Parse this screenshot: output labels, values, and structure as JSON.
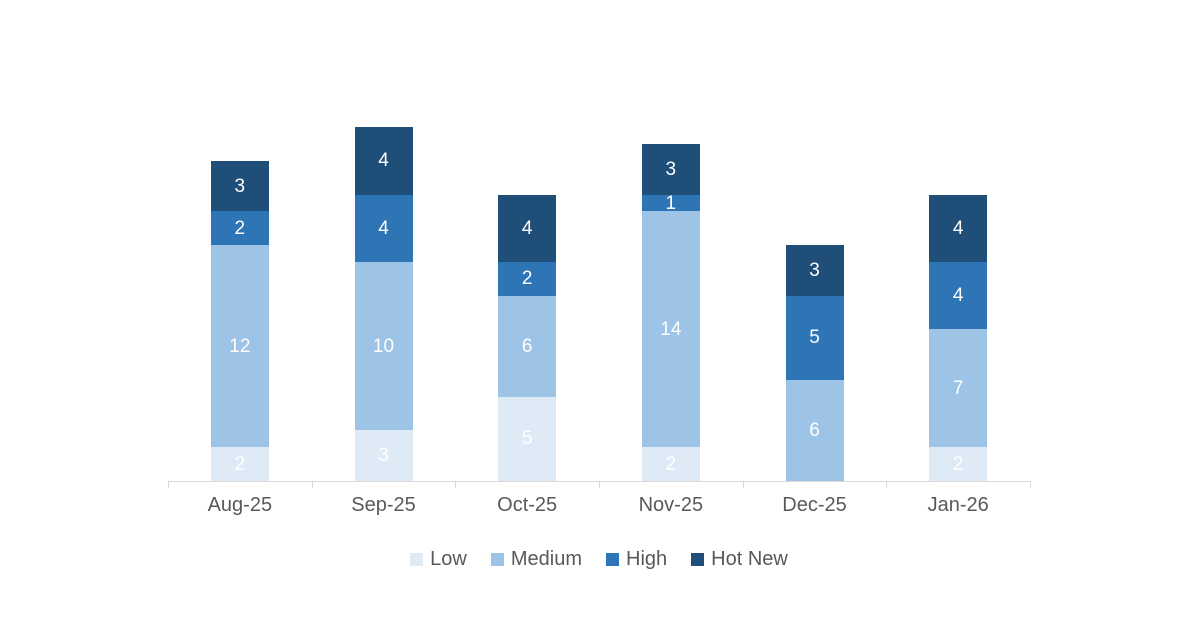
{
  "chart_data": {
    "type": "bar",
    "stacked": true,
    "title": "",
    "categories": [
      "Aug-25",
      "Sep-25",
      "Oct-25",
      "Nov-25",
      "Dec-25",
      "Jan-26"
    ],
    "series": [
      {
        "name": "Low",
        "color": "#DEEAF6",
        "values": [
          2,
          3,
          5,
          2,
          0,
          2
        ]
      },
      {
        "name": "Medium",
        "color": "#9DC3E6",
        "values": [
          12,
          10,
          6,
          14,
          6,
          7
        ]
      },
      {
        "name": "High",
        "color": "#2E75B6",
        "values": [
          2,
          4,
          2,
          1,
          5,
          4
        ]
      },
      {
        "name": "Hot New",
        "color": "#1F4E79",
        "values": [
          3,
          4,
          4,
          3,
          3,
          4
        ]
      }
    ],
    "data_labels": {
      "visible": true,
      "color": "#FFFFFF"
    },
    "legend": {
      "position": "bottom",
      "entries": [
        "Low",
        "Medium",
        "High",
        "Hot New"
      ]
    },
    "x_axis": {
      "label_color": "#595959",
      "line_color": "#D9D9D9",
      "ticks": true
    },
    "y_axis": {
      "visible": false
    },
    "grid": false
  }
}
